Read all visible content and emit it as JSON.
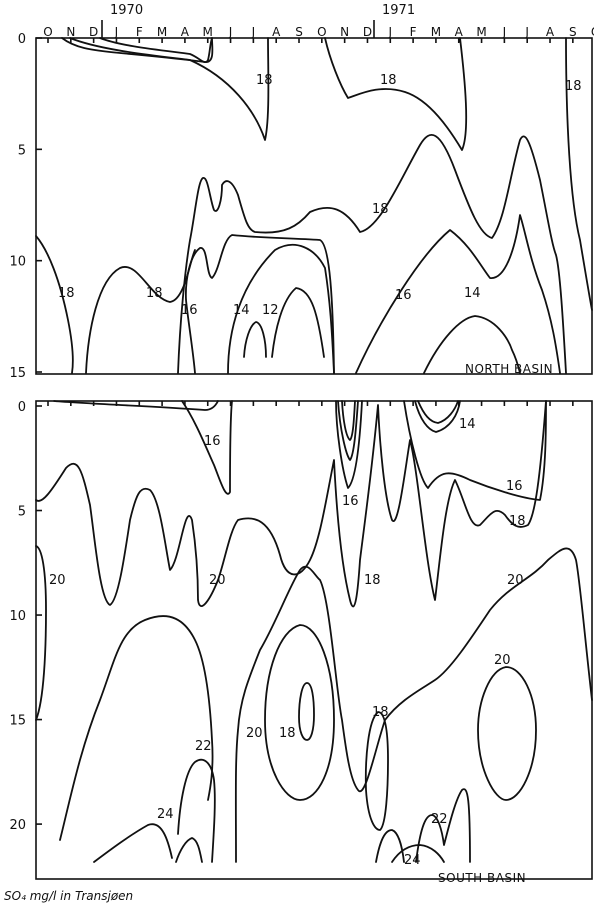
{
  "chart_data": [
    {
      "type": "contour",
      "panel": "North basin",
      "basin_label": "NORTH BASIN",
      "ylim": [
        0,
        15
      ],
      "y_ticks": [
        "0",
        "5",
        "10",
        "15"
      ],
      "contour_labels": [
        "18",
        "18",
        "18",
        "18",
        "18",
        "18",
        "16",
        "16",
        "14",
        "14",
        "12"
      ]
    },
    {
      "type": "contour",
      "panel": "South basin",
      "basin_label": "SOUTH BASIN",
      "ylim": [
        0,
        21
      ],
      "y_ticks": [
        "0",
        "5",
        "10",
        "15",
        "20"
      ],
      "contour_labels": [
        "16",
        "16",
        "16",
        "14",
        "18",
        "18",
        "20",
        "20",
        "20",
        "20",
        "18",
        "20",
        "18",
        "22",
        "22",
        "24",
        "24"
      ]
    }
  ],
  "shared": {
    "years": [
      "1970",
      "1971"
    ],
    "months": [
      "O",
      "N",
      "D",
      "J",
      "F",
      "M",
      "A",
      "M",
      "J",
      "J",
      "A",
      "S",
      "O",
      "N",
      "D",
      "J",
      "F",
      "M",
      "A",
      "M",
      "J",
      "J",
      "A",
      "S",
      "O"
    ]
  },
  "caption": "SO₄ mg/l in Transjøen"
}
